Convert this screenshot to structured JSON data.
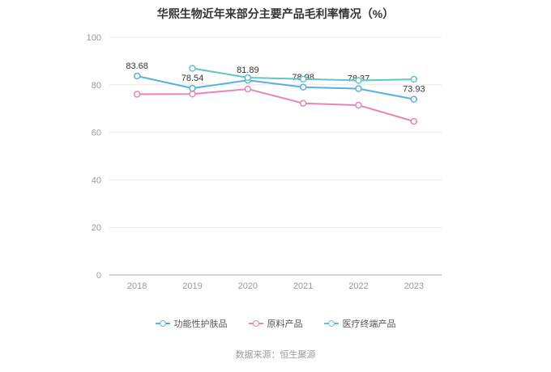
{
  "header": {
    "title": "华熙生物近年来部分主要产品毛利率情况（%）"
  },
  "footer": {
    "source": "数据来源：恒生聚源"
  },
  "chart_data": {
    "type": "line",
    "title": "华熙生物近年来部分主要产品毛利率情况（%）",
    "categories": [
      "2018",
      "2019",
      "2020",
      "2021",
      "2022",
      "2023"
    ],
    "series": [
      {
        "name": "功能性护肤品",
        "color": "#58b0e3",
        "values": [
          83.68,
          78.54,
          81.89,
          78.98,
          78.37,
          73.93
        ],
        "data_labels": [
          "83.68",
          "78.54",
          "81.89",
          "78.98",
          "78.37",
          "73.93"
        ]
      },
      {
        "name": "原料产品",
        "color": "#e586b3",
        "values": [
          76.0,
          76.1,
          78.2,
          72.2,
          71.4,
          64.6
        ],
        "data_labels": null
      },
      {
        "name": "医疗终端产品",
        "color": "#5fc6c2",
        "values": [
          null,
          86.9,
          83.0,
          82.4,
          81.8,
          82.3
        ],
        "data_labels": null
      }
    ],
    "ylim": [
      0,
      100
    ],
    "yticks": [
      0,
      20,
      40,
      60,
      80,
      100
    ],
    "grid": true,
    "legend_position": "bottom",
    "axis_color": "#aaaaaa",
    "grid_color": "#e8e8e8",
    "tick_label_color": "#999999",
    "label_color": "#333333"
  }
}
